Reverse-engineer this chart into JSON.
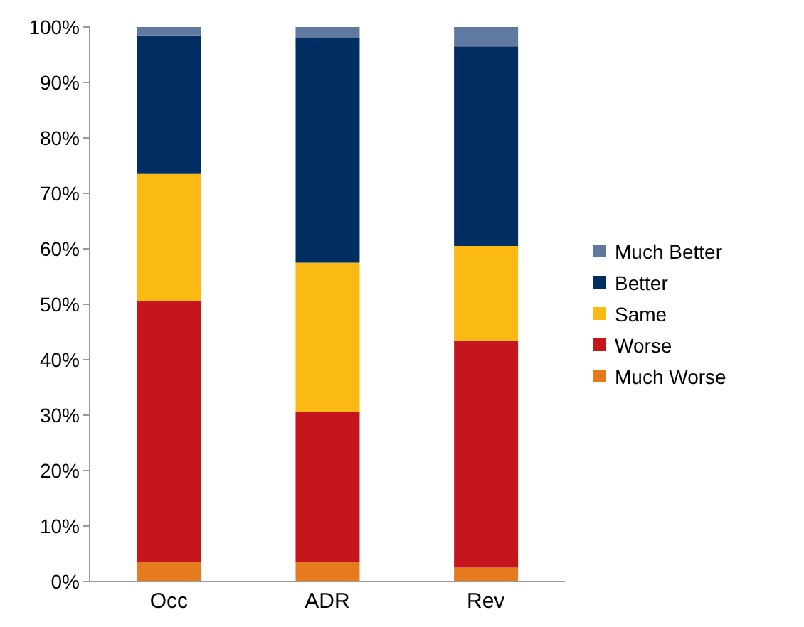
{
  "chart_data": {
    "type": "bar",
    "stacked": true,
    "categories": [
      "Occ",
      "ADR",
      "Rev"
    ],
    "series": [
      {
        "name": "Much Worse",
        "color": "#e57b1e",
        "values": [
          3.5,
          3.5,
          2.5
        ]
      },
      {
        "name": "Worse",
        "color": "#c4161c",
        "values": [
          47,
          27,
          41
        ]
      },
      {
        "name": "Same",
        "color": "#fbb914",
        "values": [
          23,
          27,
          17
        ]
      },
      {
        "name": "Better",
        "color": "#002d62",
        "values": [
          25,
          40.5,
          36
        ]
      },
      {
        "name": "Much Better",
        "color": "#6079a0",
        "values": [
          1.5,
          2,
          3.5
        ]
      }
    ],
    "ylim": [
      0,
      100
    ],
    "yticks": [
      {
        "value": 0,
        "label": "0%"
      },
      {
        "value": 10,
        "label": "10%"
      },
      {
        "value": 20,
        "label": "20%"
      },
      {
        "value": 30,
        "label": "30%"
      },
      {
        "value": 40,
        "label": "40%"
      },
      {
        "value": 50,
        "label": "50%"
      },
      {
        "value": 60,
        "label": "60%"
      },
      {
        "value": 70,
        "label": "70%"
      },
      {
        "value": 80,
        "label": "80%"
      },
      {
        "value": 90,
        "label": "90%"
      },
      {
        "value": 100,
        "label": "100%"
      }
    ],
    "grid": false,
    "legend": "right"
  }
}
